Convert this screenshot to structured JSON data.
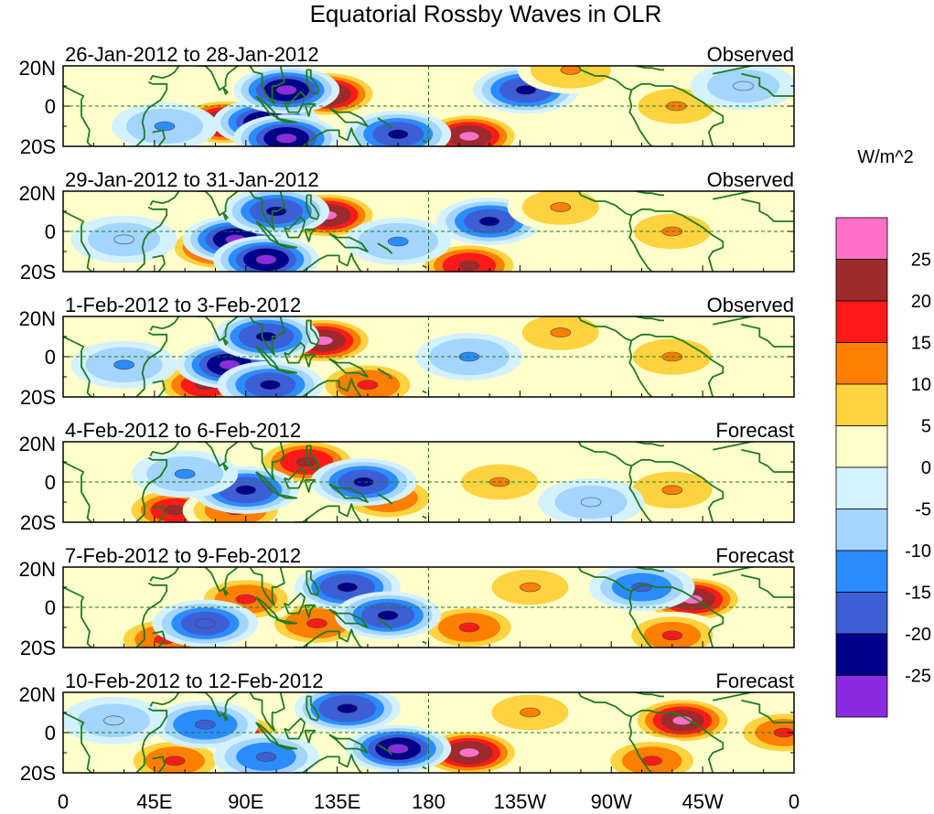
{
  "chart_data": {
    "type": "heatmap",
    "title": "Equatorial Rossby Waves in OLR",
    "colorbar": {
      "unit_label": "W/m^2",
      "tick_labels": [
        "25",
        "20",
        "15",
        "10",
        "5",
        "0",
        "-5",
        "-10",
        "-15",
        "-20",
        "-25"
      ],
      "levels_top_to_bottom": [
        {
          "range": ">25",
          "color": "#ff6ec7"
        },
        {
          "range": "20 to 25",
          "color": "#9e2a2b"
        },
        {
          "range": "15 to 20",
          "color": "#ff1a1a"
        },
        {
          "range": "10 to 15",
          "color": "#ff7f00"
        },
        {
          "range": "5 to 10",
          "color": "#ffd23f"
        },
        {
          "range": "0 to 5",
          "color": "#ffffcc"
        },
        {
          "range": "-5 to 0",
          "color": "#d4f1ff"
        },
        {
          "range": "-10 to -5",
          "color": "#a3d5ff"
        },
        {
          "range": "-15 to -10",
          "color": "#2b8cff"
        },
        {
          "range": "-20 to -15",
          "color": "#3d5fd6"
        },
        {
          "range": "-25 to -20",
          "color": "#00008b"
        },
        {
          "range": "<-25",
          "color": "#8a2be2"
        }
      ]
    },
    "x_axis": {
      "range_deg_east": [
        0,
        360
      ],
      "ticks": [
        {
          "label": "0",
          "lon": 0
        },
        {
          "label": "45E",
          "lon": 45
        },
        {
          "label": "90E",
          "lon": 90
        },
        {
          "label": "135E",
          "lon": 135
        },
        {
          "label": "180",
          "lon": 180
        },
        {
          "label": "135W",
          "lon": 225
        },
        {
          "label": "90W",
          "lon": 270
        },
        {
          "label": "45W",
          "lon": 315
        },
        {
          "label": "0",
          "lon": 360
        }
      ]
    },
    "y_axis": {
      "range_deg": [
        -20,
        20
      ],
      "ticks": [
        {
          "label": "20N",
          "lat": 20
        },
        {
          "label": "0",
          "lat": 0
        },
        {
          "label": "20S",
          "lat": -20
        }
      ]
    },
    "panels": [
      {
        "date_range": "26-Jan-2012 to 28-Jan-2012",
        "status": "Observed",
        "anomalies": [
          {
            "lon": 80,
            "lat": -8,
            "value": 28
          },
          {
            "lon": 130,
            "lat": 6,
            "value": 27
          },
          {
            "lon": 200,
            "lat": -15,
            "value": 26
          },
          {
            "lon": 100,
            "lat": -8,
            "value": -26
          },
          {
            "lon": 110,
            "lat": -16,
            "value": -26
          },
          {
            "lon": 110,
            "lat": 8,
            "value": -26
          },
          {
            "lon": 228,
            "lat": 8,
            "value": -22
          },
          {
            "lon": 165,
            "lat": -14,
            "value": -21
          },
          {
            "lon": 250,
            "lat": 18,
            "value": 14
          },
          {
            "lon": 302,
            "lat": 0,
            "value": 12
          },
          {
            "lon": 50,
            "lat": -10,
            "value": -12
          },
          {
            "lon": 335,
            "lat": 10,
            "value": -10
          }
        ]
      },
      {
        "date_range": "29-Jan-2012 to 31-Jan-2012",
        "status": "Observed",
        "anomalies": [
          {
            "lon": 130,
            "lat": 8,
            "value": 27
          },
          {
            "lon": 77,
            "lat": -8,
            "value": 24
          },
          {
            "lon": 200,
            "lat": -17,
            "value": 22
          },
          {
            "lon": 85,
            "lat": -4,
            "value": -26
          },
          {
            "lon": 100,
            "lat": -14,
            "value": -26
          },
          {
            "lon": 105,
            "lat": 10,
            "value": -22
          },
          {
            "lon": 210,
            "lat": 5,
            "value": -21
          },
          {
            "lon": 165,
            "lat": -5,
            "value": -14
          },
          {
            "lon": 245,
            "lat": 12,
            "value": 12
          },
          {
            "lon": 300,
            "lat": 0,
            "value": 12
          },
          {
            "lon": 30,
            "lat": -4,
            "value": -10
          }
        ]
      },
      {
        "date_range": "1-Feb-2012 to 3-Feb-2012",
        "status": "Observed",
        "anomalies": [
          {
            "lon": 128,
            "lat": 8,
            "value": 26
          },
          {
            "lon": 70,
            "lat": -14,
            "value": 20
          },
          {
            "lon": 150,
            "lat": -14,
            "value": 18
          },
          {
            "lon": 82,
            "lat": -4,
            "value": -26
          },
          {
            "lon": 100,
            "lat": 10,
            "value": -23
          },
          {
            "lon": 102,
            "lat": -14,
            "value": -21
          },
          {
            "lon": 200,
            "lat": 0,
            "value": -14
          },
          {
            "lon": 245,
            "lat": 12,
            "value": 12
          },
          {
            "lon": 300,
            "lat": 0,
            "value": 13
          },
          {
            "lon": 30,
            "lat": -4,
            "value": -12
          }
        ]
      },
      {
        "date_range": "4-Feb-2012 to 6-Feb-2012",
        "status": "Forecast",
        "anomalies": [
          {
            "lon": 120,
            "lat": 10,
            "value": 22
          },
          {
            "lon": 55,
            "lat": -14,
            "value": 20
          },
          {
            "lon": 85,
            "lat": -14,
            "value": 17
          },
          {
            "lon": 160,
            "lat": -8,
            "value": 16
          },
          {
            "lon": 90,
            "lat": -4,
            "value": -23
          },
          {
            "lon": 148,
            "lat": 0,
            "value": -21
          },
          {
            "lon": 60,
            "lat": 4,
            "value": -12
          },
          {
            "lon": 215,
            "lat": 0,
            "value": 12
          },
          {
            "lon": 300,
            "lat": -4,
            "value": 14
          },
          {
            "lon": 260,
            "lat": -10,
            "value": -10
          }
        ]
      },
      {
        "date_range": "7-Feb-2012 to 9-Feb-2012",
        "status": "Forecast",
        "anomalies": [
          {
            "lon": 310,
            "lat": 4,
            "value": 26
          },
          {
            "lon": 125,
            "lat": -8,
            "value": 18
          },
          {
            "lon": 90,
            "lat": 4,
            "value": 17
          },
          {
            "lon": 200,
            "lat": -10,
            "value": 17
          },
          {
            "lon": 50,
            "lat": -16,
            "value": 16
          },
          {
            "lon": 140,
            "lat": 10,
            "value": -23
          },
          {
            "lon": 160,
            "lat": -4,
            "value": -22
          },
          {
            "lon": 70,
            "lat": -8,
            "value": -20
          },
          {
            "lon": 285,
            "lat": 10,
            "value": -16
          },
          {
            "lon": 230,
            "lat": 10,
            "value": 12
          },
          {
            "lon": 300,
            "lat": -14,
            "value": 15
          }
        ]
      },
      {
        "date_range": "10-Feb-2012 to 12-Feb-2012",
        "status": "Forecast",
        "anomalies": [
          {
            "lon": 200,
            "lat": -10,
            "value": 27
          },
          {
            "lon": 305,
            "lat": 6,
            "value": 25
          },
          {
            "lon": 85,
            "lat": -2,
            "value": 21
          },
          {
            "lon": 55,
            "lat": -14,
            "value": 16
          },
          {
            "lon": 355,
            "lat": 0,
            "value": 15
          },
          {
            "lon": 140,
            "lat": 12,
            "value": -24
          },
          {
            "lon": 165,
            "lat": -8,
            "value": -26
          },
          {
            "lon": 70,
            "lat": 4,
            "value": -18
          },
          {
            "lon": 100,
            "lat": -12,
            "value": -16
          },
          {
            "lon": 230,
            "lat": 10,
            "value": 12
          },
          {
            "lon": 290,
            "lat": -14,
            "value": 16
          },
          {
            "lon": 25,
            "lat": 6,
            "value": -10
          }
        ]
      }
    ]
  }
}
